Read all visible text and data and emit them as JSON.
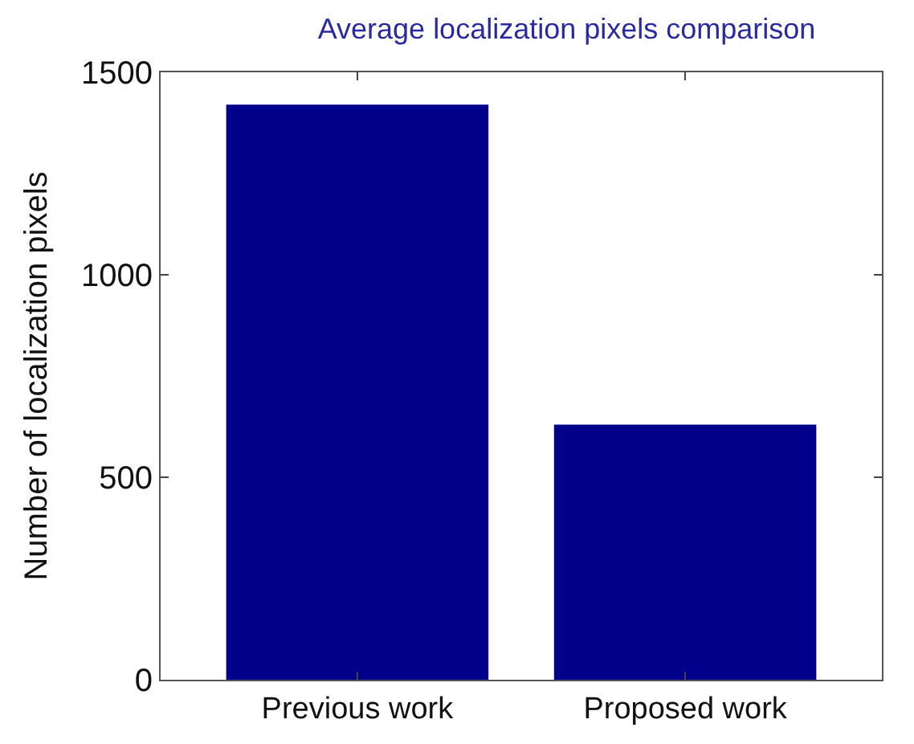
{
  "chart_data": {
    "type": "bar",
    "title": "Average localization pixels comparison",
    "ylabel": "Number of localization pixels",
    "categories": [
      "Previous work",
      "Proposed work"
    ],
    "series": [
      {
        "color": "#00008b",
        "values": [
          1420,
          630
        ]
      }
    ],
    "ylim": [
      0,
      1500
    ],
    "yticks": [
      0,
      500,
      1000,
      1500
    ]
  }
}
